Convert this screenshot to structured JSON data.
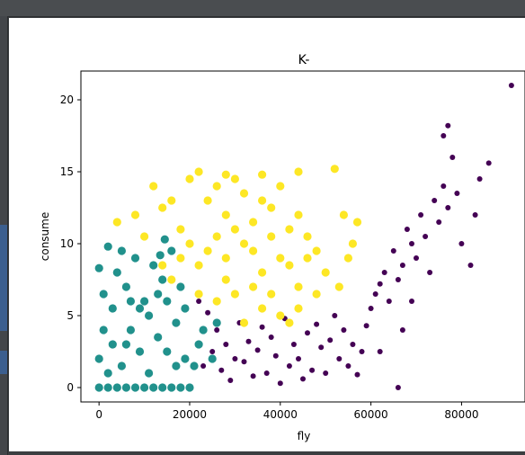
{
  "chart_data": {
    "type": "scatter",
    "title": "K-",
    "xlabel": "fly",
    "ylabel": "consume",
    "xlim": [
      -4000,
      94000
    ],
    "ylim": [
      -1.0,
      22.0
    ],
    "xticks": [
      0,
      20000,
      40000,
      60000,
      80000
    ],
    "xtick_labels": [
      "0",
      "20000",
      "40000",
      "60000",
      "80000"
    ],
    "yticks": [
      0,
      5,
      10,
      15,
      20
    ],
    "ytick_labels": [
      "0",
      "5",
      "10",
      "15",
      "20"
    ],
    "grid": false,
    "legend": "none",
    "series": [
      {
        "color": "#440154",
        "marker_size": "small",
        "points": [
          [
            22000,
            6.0
          ],
          [
            23000,
            1.5
          ],
          [
            25000,
            2.5
          ],
          [
            24000,
            5.2
          ],
          [
            26000,
            4.0
          ],
          [
            27000,
            1.2
          ],
          [
            28000,
            3.0
          ],
          [
            29000,
            0.5
          ],
          [
            30000,
            2.0
          ],
          [
            31000,
            4.5
          ],
          [
            32000,
            1.8
          ],
          [
            33000,
            3.2
          ],
          [
            34000,
            0.8
          ],
          [
            35000,
            2.6
          ],
          [
            36000,
            4.2
          ],
          [
            37000,
            1.0
          ],
          [
            38000,
            3.5
          ],
          [
            39000,
            2.2
          ],
          [
            40000,
            0.3
          ],
          [
            41000,
            4.8
          ],
          [
            42000,
            1.5
          ],
          [
            43000,
            3.0
          ],
          [
            44000,
            2.0
          ],
          [
            45000,
            0.6
          ],
          [
            46000,
            3.8
          ],
          [
            47000,
            1.2
          ],
          [
            48000,
            4.4
          ],
          [
            49000,
            2.8
          ],
          [
            50000,
            1.0
          ],
          [
            51000,
            3.3
          ],
          [
            52000,
            5.0
          ],
          [
            53000,
            2.0
          ],
          [
            54000,
            4.0
          ],
          [
            55000,
            1.5
          ],
          [
            56000,
            3.0
          ],
          [
            57000,
            0.9
          ],
          [
            58000,
            2.5
          ],
          [
            59000,
            4.3
          ],
          [
            60000,
            5.5
          ],
          [
            61000,
            6.5
          ],
          [
            62000,
            7.2
          ],
          [
            63000,
            8.0
          ],
          [
            64000,
            6.0
          ],
          [
            65000,
            9.5
          ],
          [
            66000,
            7.5
          ],
          [
            67000,
            8.5
          ],
          [
            68000,
            11.0
          ],
          [
            69000,
            10.0
          ],
          [
            70000,
            9.0
          ],
          [
            71000,
            12.0
          ],
          [
            72000,
            10.5
          ],
          [
            73000,
            8.0
          ],
          [
            74000,
            13.0
          ],
          [
            75000,
            11.5
          ],
          [
            76000,
            14.0
          ],
          [
            77000,
            12.5
          ],
          [
            78000,
            16.0
          ],
          [
            79000,
            13.5
          ],
          [
            80000,
            10.0
          ],
          [
            82000,
            8.5
          ],
          [
            83000,
            12.0
          ],
          [
            84000,
            14.5
          ],
          [
            86000,
            15.6
          ],
          [
            66000,
            0.0
          ],
          [
            91000,
            21.0
          ],
          [
            77000,
            18.2
          ],
          [
            76000,
            17.5
          ],
          [
            62000,
            2.5
          ],
          [
            67000,
            4.0
          ],
          [
            69000,
            6.0
          ]
        ]
      },
      {
        "color": "#21918c",
        "marker_size": "large",
        "points": [
          [
            0,
            0.0
          ],
          [
            2000,
            0.0
          ],
          [
            4000,
            0.0
          ],
          [
            6000,
            0.0
          ],
          [
            8000,
            0.0
          ],
          [
            10000,
            0.0
          ],
          [
            12000,
            0.0
          ],
          [
            14000,
            0.0
          ],
          [
            16000,
            0.0
          ],
          [
            18000,
            0.0
          ],
          [
            20000,
            0.0
          ],
          [
            0,
            2.0
          ],
          [
            3000,
            3.0
          ],
          [
            5000,
            1.5
          ],
          [
            7000,
            4.0
          ],
          [
            9000,
            2.5
          ],
          [
            11000,
            5.0
          ],
          [
            13000,
            3.5
          ],
          [
            15000,
            6.0
          ],
          [
            17000,
            4.5
          ],
          [
            19000,
            2.0
          ],
          [
            1000,
            6.5
          ],
          [
            4000,
            8.0
          ],
          [
            6000,
            7.0
          ],
          [
            8000,
            9.0
          ],
          [
            10000,
            6.0
          ],
          [
            12000,
            8.5
          ],
          [
            14000,
            7.5
          ],
          [
            16000,
            9.5
          ],
          [
            2000,
            9.8
          ],
          [
            5000,
            9.5
          ],
          [
            13500,
            9.2
          ],
          [
            14500,
            10.3
          ],
          [
            21000,
            1.5
          ],
          [
            22000,
            3.0
          ],
          [
            23000,
            4.0
          ],
          [
            25000,
            2.0
          ],
          [
            26000,
            4.5
          ],
          [
            18000,
            7.0
          ],
          [
            0,
            8.3
          ],
          [
            1000,
            4.0
          ],
          [
            3000,
            5.5
          ],
          [
            6000,
            3.0
          ],
          [
            9000,
            5.5
          ],
          [
            11000,
            1.0
          ],
          [
            13000,
            6.5
          ],
          [
            15000,
            2.5
          ],
          [
            17000,
            1.5
          ],
          [
            19000,
            5.5
          ],
          [
            7000,
            6.0
          ],
          [
            2000,
            1.0
          ]
        ]
      },
      {
        "color": "#fde725",
        "marker_size": "large",
        "points": [
          [
            4000,
            11.5
          ],
          [
            8000,
            12.0
          ],
          [
            10000,
            10.5
          ],
          [
            12000,
            14.0
          ],
          [
            14000,
            12.5
          ],
          [
            16000,
            13.0
          ],
          [
            18000,
            11.0
          ],
          [
            20000,
            14.5
          ],
          [
            22000,
            15.0
          ],
          [
            24000,
            13.0
          ],
          [
            26000,
            14.0
          ],
          [
            28000,
            12.0
          ],
          [
            30000,
            14.5
          ],
          [
            32000,
            13.5
          ],
          [
            34000,
            11.5
          ],
          [
            36000,
            13.0
          ],
          [
            38000,
            12.5
          ],
          [
            40000,
            14.0
          ],
          [
            42000,
            11.0
          ],
          [
            44000,
            12.0
          ],
          [
            46000,
            10.5
          ],
          [
            48000,
            9.5
          ],
          [
            50000,
            8.0
          ],
          [
            52000,
            15.2
          ],
          [
            54000,
            12.0
          ],
          [
            56000,
            10.0
          ],
          [
            57000,
            11.5
          ],
          [
            55000,
            9.0
          ],
          [
            53000,
            7.0
          ],
          [
            20000,
            10.0
          ],
          [
            22000,
            8.5
          ],
          [
            24000,
            9.5
          ],
          [
            26000,
            10.5
          ],
          [
            28000,
            9.0
          ],
          [
            30000,
            11.0
          ],
          [
            32000,
            10.0
          ],
          [
            34000,
            9.5
          ],
          [
            36000,
            8.0
          ],
          [
            38000,
            10.5
          ],
          [
            40000,
            9.0
          ],
          [
            42000,
            8.5
          ],
          [
            44000,
            7.0
          ],
          [
            46000,
            9.0
          ],
          [
            48000,
            6.5
          ],
          [
            26000,
            6.0
          ],
          [
            28000,
            7.5
          ],
          [
            30000,
            6.5
          ],
          [
            32000,
            4.5
          ],
          [
            34000,
            7.0
          ],
          [
            36000,
            5.5
          ],
          [
            38000,
            6.5
          ],
          [
            40000,
            5.0
          ],
          [
            42000,
            4.5
          ],
          [
            44000,
            5.5
          ],
          [
            14000,
            8.5
          ],
          [
            16000,
            7.5
          ],
          [
            18000,
            9.0
          ],
          [
            22000,
            6.5
          ],
          [
            44000,
            15.0
          ],
          [
            36000,
            14.8
          ],
          [
            28000,
            14.8
          ]
        ]
      }
    ]
  }
}
